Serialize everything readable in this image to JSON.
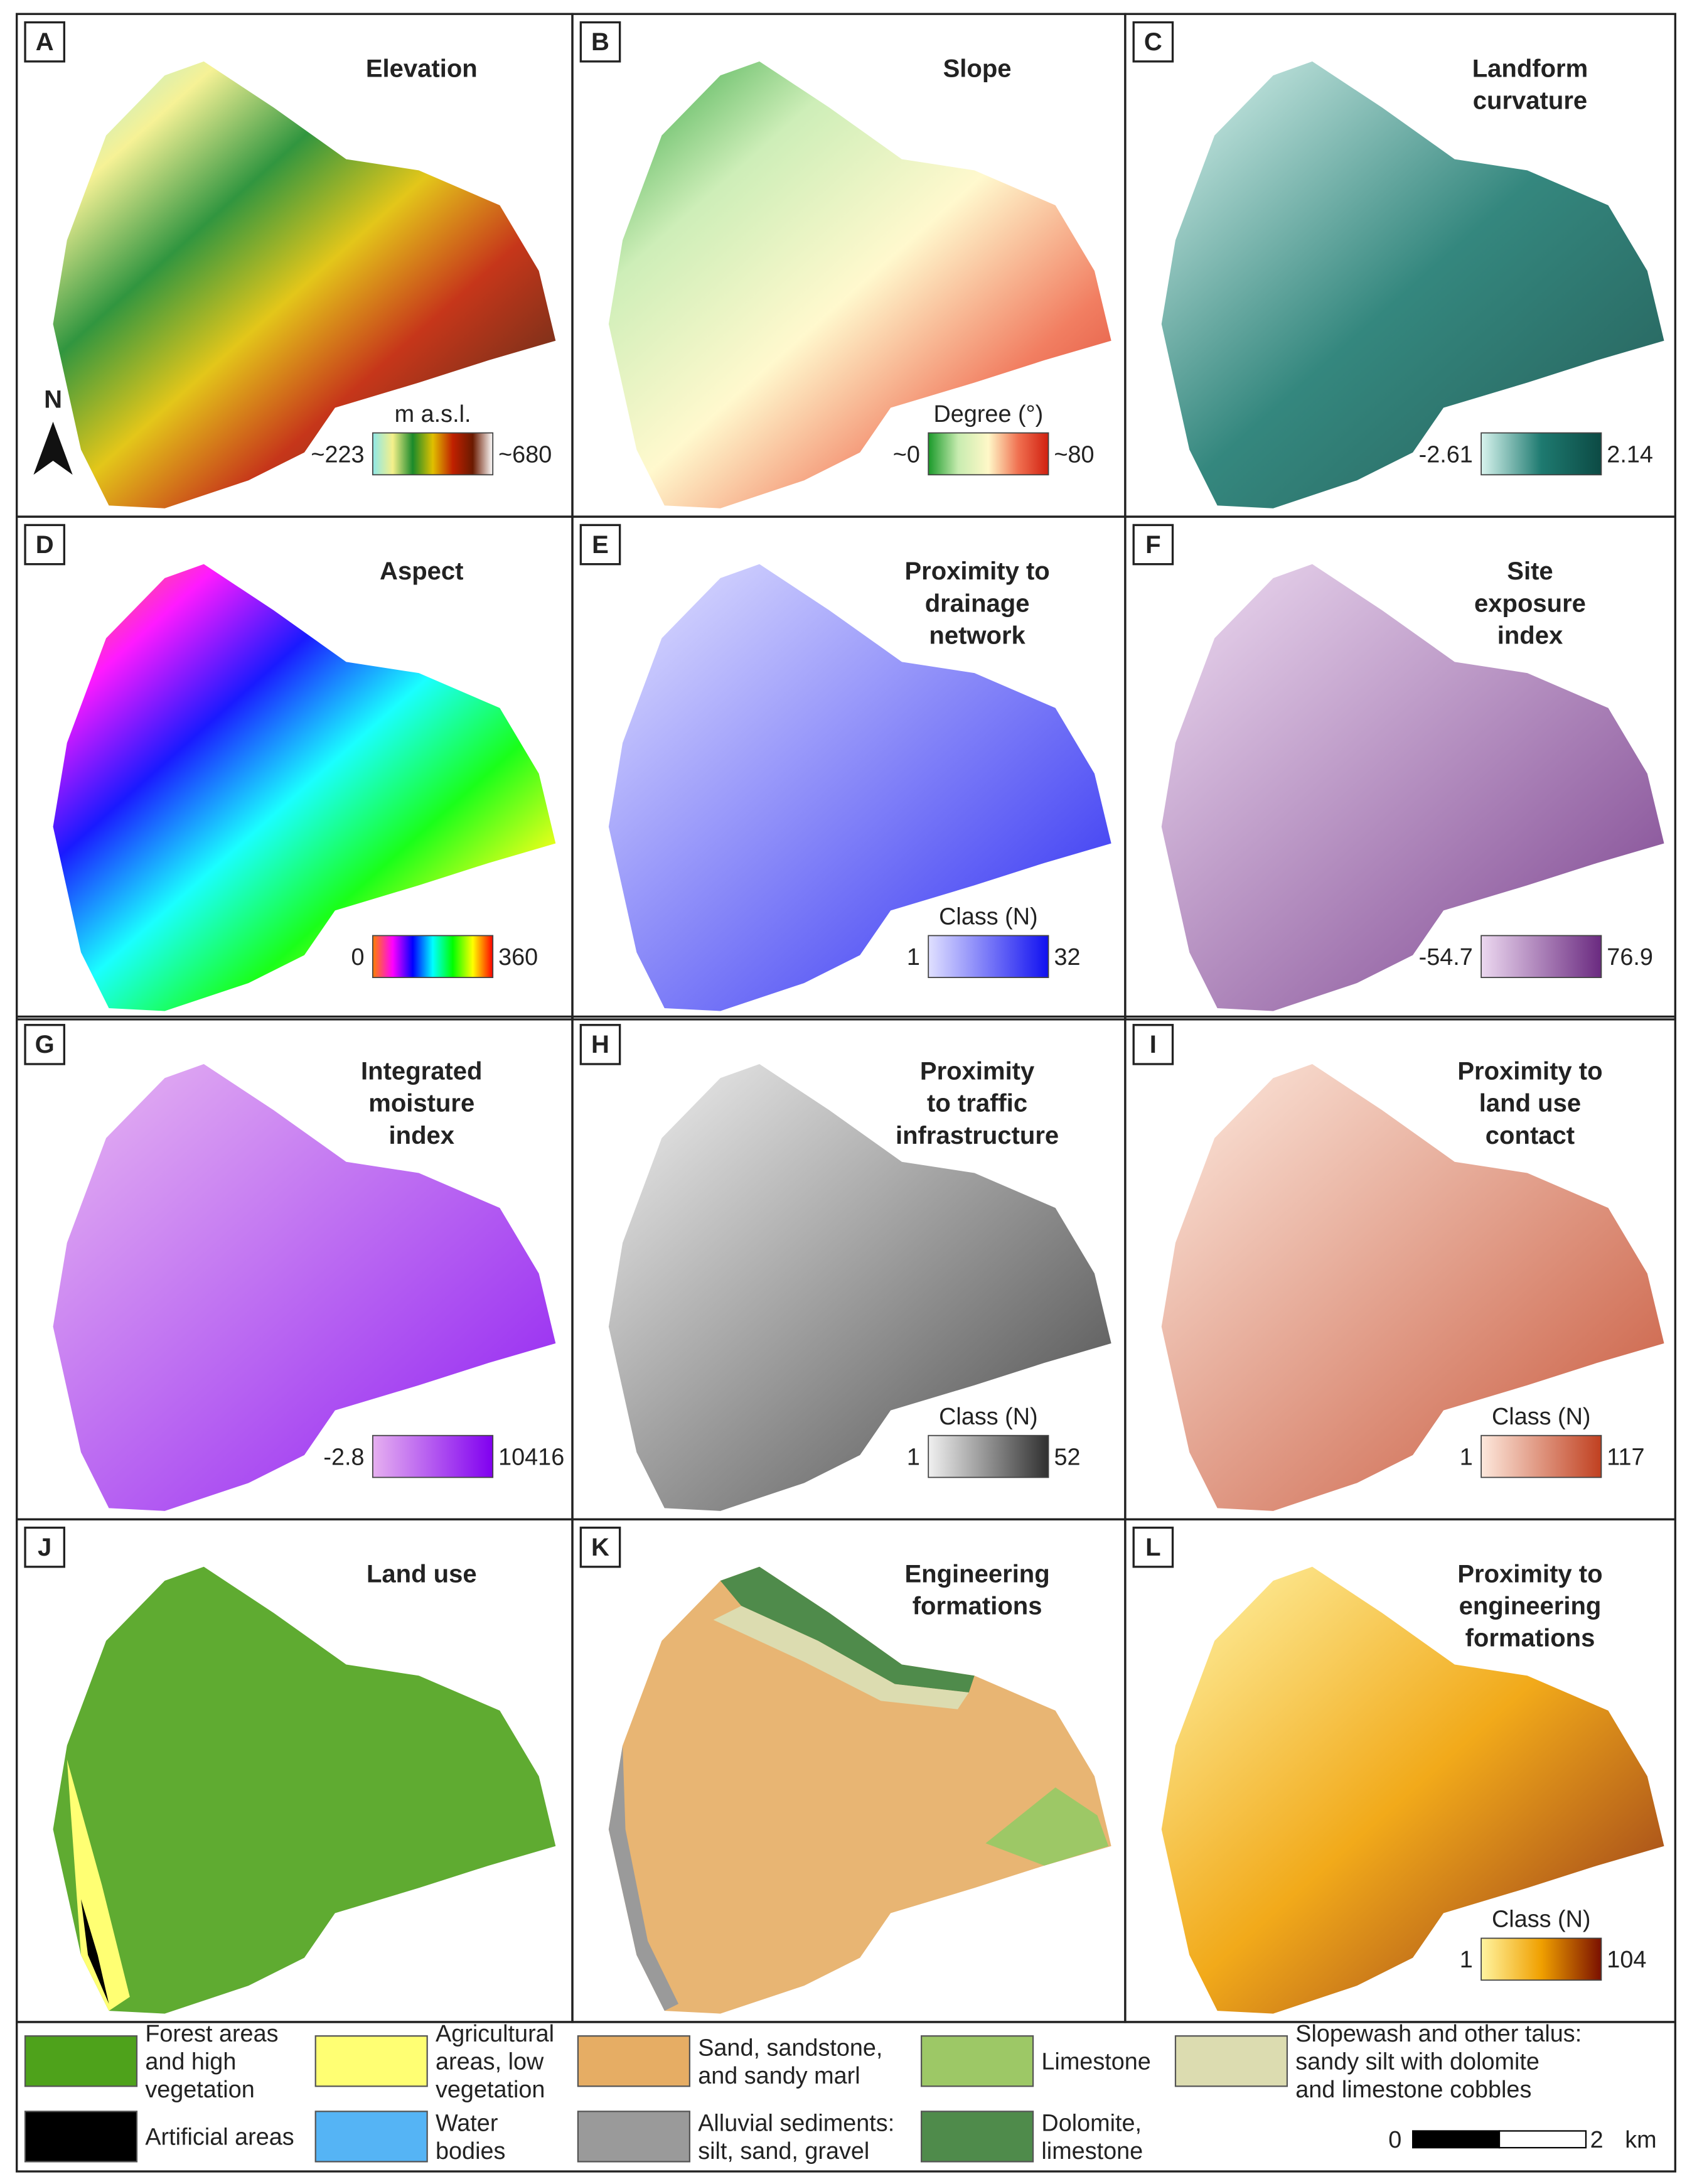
{
  "panels": [
    {
      "letter": "A",
      "title": [
        "Elevation"
      ],
      "legend_title": "m a.s.l.",
      "min": "~223",
      "max": "~680",
      "north": "N",
      "colors": [
        "#8ee8e8",
        "#f5f08a",
        "#1a8a2a",
        "#e0c000",
        "#c02000",
        "#6a1a00",
        "#ffffff"
      ]
    },
    {
      "letter": "B",
      "title": [
        "Slope"
      ],
      "legend_title": "Degree (°)",
      "min": "~0",
      "max": "~80",
      "colors": [
        "#1a9a2a",
        "#c8ecb0",
        "#fff8c8",
        "#f07050",
        "#d02010"
      ]
    },
    {
      "letter": "C",
      "title": [
        "Landform",
        "curvature"
      ],
      "min": "-2.61",
      "max": "2.14",
      "colors": [
        "#d8f4ee",
        "#1e7a70",
        "#0c4a44"
      ]
    },
    {
      "letter": "D",
      "title": [
        "Aspect"
      ],
      "min": "0",
      "max": "360",
      "colors": [
        "#ff8000",
        "#ff00ff",
        "#0000ff",
        "#00ffff",
        "#00ff00",
        "#ffff00",
        "#ff0000"
      ]
    },
    {
      "letter": "E",
      "title": [
        "Proximity to",
        "drainage",
        "network"
      ],
      "legend_title": "Class (N)",
      "min": "1",
      "max": "32",
      "colors": [
        "#e0e0ff",
        "#1010f0"
      ]
    },
    {
      "letter": "F",
      "title": [
        "Site",
        "exposure",
        "index"
      ],
      "min": "-54.7",
      "max": "76.9",
      "colors": [
        "#ecd8f0",
        "#6a2a80"
      ]
    },
    {
      "letter": "G",
      "title": [
        "Integrated",
        "moisture",
        "index"
      ],
      "min": "-2.8",
      "max": "10416",
      "colors": [
        "#e6b0f0",
        "#8000f0"
      ]
    },
    {
      "letter": "H",
      "title": [
        "Proximity",
        "to traffic",
        "infrastructure"
      ],
      "legend_title": "Class (N)",
      "min": "1",
      "max": "52",
      "colors": [
        "#f0f0f0",
        "#303030"
      ]
    },
    {
      "letter": "I",
      "title": [
        "Proximity to",
        "land use",
        "contact"
      ],
      "legend_title": "Class (N)",
      "min": "1",
      "max": "117",
      "colors": [
        "#fde8dc",
        "#c04020"
      ]
    },
    {
      "letter": "J",
      "title": [
        "Land use"
      ]
    },
    {
      "letter": "K",
      "title": [
        "Engineering",
        "formations"
      ]
    },
    {
      "letter": "L",
      "title": [
        "Proximity to",
        "engineering",
        "formations"
      ],
      "legend_title": "Class (N)",
      "min": "1",
      "max": "104",
      "colors": [
        "#fff4a0",
        "#f0a000",
        "#7a1000"
      ]
    }
  ],
  "legend_land_use": [
    {
      "label": [
        "Forest areas",
        "and high",
        "vegetation"
      ],
      "color": "#4ea21b"
    },
    {
      "label": [
        "Agricultural",
        "areas, low",
        "vegetation"
      ],
      "color": "#ffff73"
    },
    {
      "label": [
        "Artificial areas"
      ],
      "color": "#000000"
    },
    {
      "label": [
        "Water",
        "bodies"
      ],
      "color": "#55b4f5"
    }
  ],
  "legend_formations": [
    {
      "label": [
        "Sand, sandstone,",
        "and sandy marl"
      ],
      "color": "#e6ad64"
    },
    {
      "label": [
        "Limestone"
      ],
      "color": "#9dc866"
    },
    {
      "label": [
        "Slopewash and other talus:",
        "sandy silt with dolomite",
        "and limestone cobbles"
      ],
      "color": "#dcdcb0"
    },
    {
      "label": [
        "Alluvial sediments:",
        "silt, sand, gravel"
      ],
      "color": "#9a9a9a"
    },
    {
      "label": [
        "Dolomite,",
        "limestone"
      ],
      "color": "#4f8b4b"
    }
  ],
  "scale_bar": {
    "start": "0",
    "end": "2",
    "unit": "km"
  }
}
